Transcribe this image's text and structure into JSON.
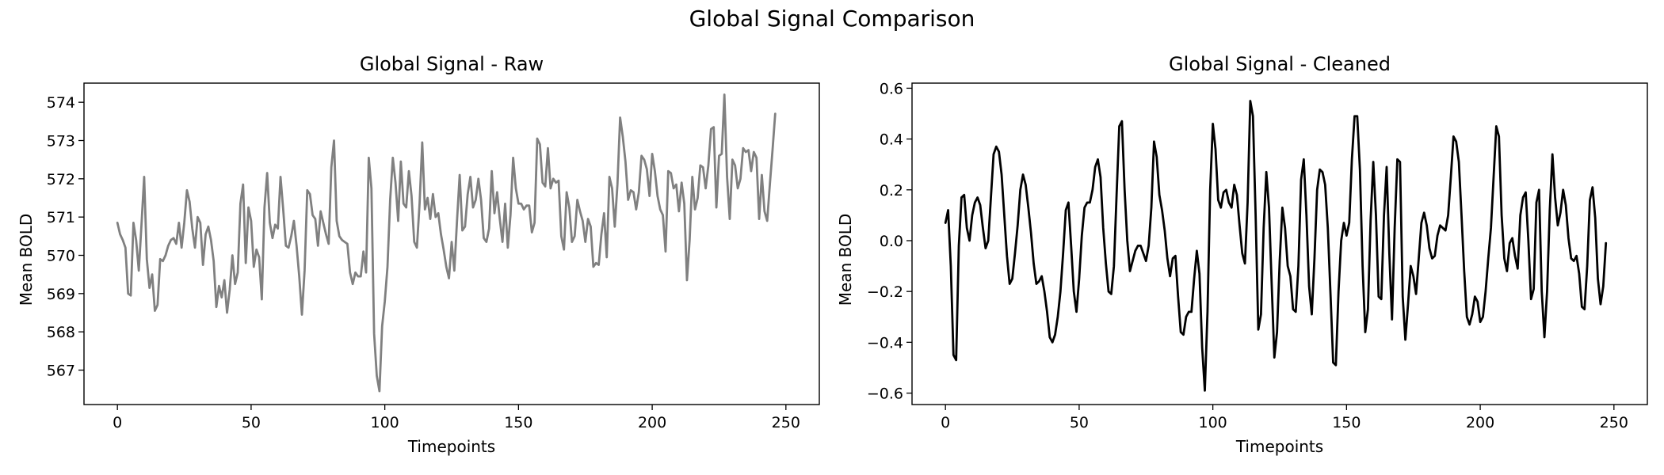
{
  "figure": {
    "suptitle": "Global Signal Comparison"
  },
  "chart_data": [
    {
      "type": "line",
      "title": "Global Signal - Raw",
      "xlabel": "Timepoints",
      "ylabel": "Mean BOLD",
      "xlim": [
        -12.5,
        262.5
      ],
      "ylim": [
        566.1,
        574.5
      ],
      "xticks": [
        0,
        50,
        100,
        150,
        200,
        250
      ],
      "yticks": [
        567,
        568,
        569,
        570,
        571,
        572,
        573,
        574
      ],
      "ytick_labels": [
        "567",
        "568",
        "569",
        "570",
        "571",
        "572",
        "573",
        "574"
      ],
      "grid": false,
      "series": [
        {
          "color": "#808080",
          "x_start": 0,
          "values": [
            570.85,
            570.55,
            570.4,
            570.2,
            569.0,
            568.95,
            570.85,
            570.4,
            569.6,
            570.8,
            572.05,
            569.9,
            569.15,
            569.5,
            568.55,
            568.7,
            569.9,
            569.85,
            570.0,
            570.25,
            570.4,
            570.45,
            570.3,
            570.85,
            570.2,
            570.85,
            571.7,
            571.4,
            570.7,
            570.2,
            571.0,
            570.85,
            569.75,
            570.55,
            570.75,
            570.4,
            569.85,
            568.65,
            569.2,
            568.9,
            569.35,
            568.5,
            569.1,
            570.0,
            569.25,
            569.55,
            571.35,
            571.85,
            569.8,
            571.25,
            570.9,
            569.7,
            570.15,
            569.95,
            568.85,
            571.25,
            572.15,
            570.85,
            570.45,
            570.8,
            570.7,
            572.05,
            571.2,
            570.25,
            570.2,
            570.5,
            570.9,
            570.25,
            569.45,
            568.45,
            569.6,
            571.7,
            571.6,
            571.05,
            570.95,
            570.25,
            571.15,
            570.85,
            570.55,
            570.3,
            572.3,
            573.0,
            570.9,
            570.5,
            570.4,
            570.35,
            570.3,
            569.55,
            569.25,
            569.55,
            569.45,
            569.45,
            570.1,
            569.55,
            572.55,
            571.75,
            567.95,
            566.85,
            566.45,
            568.15,
            568.8,
            569.7,
            571.45,
            572.55,
            571.9,
            570.9,
            572.45,
            571.35,
            571.25,
            572.2,
            571.55,
            570.35,
            570.2,
            571.35,
            572.95,
            571.2,
            571.5,
            570.95,
            571.6,
            571.0,
            571.1,
            570.55,
            570.15,
            569.7,
            569.4,
            570.35,
            569.6,
            570.9,
            572.1,
            570.65,
            570.75,
            571.6,
            572.05,
            571.25,
            571.45,
            572.0,
            571.45,
            570.45,
            570.35,
            570.7,
            572.2,
            571.1,
            571.65,
            570.95,
            570.35,
            571.35,
            570.2,
            571.05,
            572.55,
            571.75,
            571.35,
            571.35,
            571.2,
            571.3,
            571.3,
            570.6,
            570.85,
            573.05,
            572.9,
            571.9,
            571.8,
            572.8,
            571.75,
            572.0,
            571.9,
            571.95,
            570.5,
            570.15,
            571.65,
            571.25,
            570.35,
            570.5,
            571.45,
            571.15,
            570.9,
            570.35,
            570.95,
            570.75,
            569.7,
            569.8,
            569.75,
            570.55,
            571.1,
            569.95,
            572.05,
            571.75,
            570.75,
            571.85,
            573.6,
            573.1,
            572.45,
            571.45,
            571.7,
            571.65,
            571.2,
            571.65,
            572.6,
            572.5,
            572.25,
            571.55,
            572.65,
            572.2,
            571.55,
            571.2,
            571.05,
            570.1,
            572.2,
            572.15,
            571.75,
            571.85,
            571.15,
            571.9,
            571.35,
            569.35,
            570.4,
            572.05,
            571.2,
            571.5,
            572.35,
            572.3,
            571.75,
            572.35,
            573.3,
            573.35,
            571.25,
            572.6,
            572.65,
            574.2,
            572.05,
            570.95,
            572.5,
            572.35,
            571.75,
            572.0,
            572.8,
            572.7,
            572.75,
            572.2,
            572.7,
            572.55,
            570.95,
            572.1,
            571.15,
            570.9,
            571.85,
            572.75,
            573.7
          ]
        }
      ]
    },
    {
      "type": "line",
      "title": "Global Signal - Cleaned",
      "xlabel": "Timepoints",
      "ylabel": "Mean BOLD",
      "xlim": [
        -12.5,
        262.5
      ],
      "ylim": [
        -0.645,
        0.62
      ],
      "xticks": [
        0,
        50,
        100,
        150,
        200,
        250
      ],
      "yticks": [
        -0.6,
        -0.4,
        -0.2,
        0.0,
        0.2,
        0.4,
        0.6
      ],
      "ytick_labels": [
        "−0.6",
        "−0.4",
        "−0.2",
        "0.0",
        "0.2",
        "0.4",
        "0.6"
      ],
      "grid": false,
      "series": [
        {
          "color": "#000000",
          "x_start": 0,
          "values": [
            0.07,
            0.12,
            -0.1,
            -0.45,
            -0.47,
            -0.02,
            0.17,
            0.18,
            0.05,
            0.0,
            0.1,
            0.15,
            0.17,
            0.14,
            0.05,
            -0.03,
            0.0,
            0.17,
            0.34,
            0.37,
            0.35,
            0.26,
            0.1,
            -0.06,
            -0.17,
            -0.15,
            -0.05,
            0.06,
            0.2,
            0.26,
            0.22,
            0.13,
            0.03,
            -0.09,
            -0.17,
            -0.16,
            -0.14,
            -0.2,
            -0.28,
            -0.38,
            -0.4,
            -0.37,
            -0.3,
            -0.2,
            -0.05,
            0.12,
            0.15,
            -0.02,
            -0.2,
            -0.28,
            -0.15,
            0.02,
            0.13,
            0.15,
            0.15,
            0.2,
            0.29,
            0.32,
            0.25,
            0.05,
            -0.09,
            -0.2,
            -0.21,
            -0.1,
            0.18,
            0.45,
            0.47,
            0.2,
            0.0,
            -0.12,
            -0.08,
            -0.04,
            -0.02,
            -0.02,
            -0.05,
            -0.08,
            -0.02,
            0.13,
            0.39,
            0.33,
            0.18,
            0.12,
            0.04,
            -0.07,
            -0.14,
            -0.07,
            -0.06,
            -0.22,
            -0.36,
            -0.37,
            -0.3,
            -0.28,
            -0.28,
            -0.15,
            -0.04,
            -0.13,
            -0.42,
            -0.59,
            -0.28,
            0.2,
            0.46,
            0.36,
            0.16,
            0.13,
            0.19,
            0.2,
            0.15,
            0.13,
            0.22,
            0.18,
            0.06,
            -0.05,
            -0.09,
            0.15,
            0.55,
            0.49,
            0.1,
            -0.35,
            -0.29,
            0.05,
            0.27,
            0.13,
            -0.17,
            -0.46,
            -0.36,
            -0.08,
            0.13,
            0.05,
            -0.1,
            -0.14,
            -0.27,
            -0.28,
            -0.1,
            0.24,
            0.32,
            0.1,
            -0.18,
            -0.29,
            -0.07,
            0.2,
            0.28,
            0.27,
            0.22,
            0.05,
            -0.21,
            -0.48,
            -0.49,
            -0.2,
            0.0,
            0.07,
            0.02,
            0.07,
            0.32,
            0.49,
            0.49,
            0.28,
            -0.1,
            -0.36,
            -0.27,
            0.08,
            0.31,
            0.1,
            -0.22,
            -0.23,
            0.1,
            0.29,
            -0.05,
            -0.31,
            0.05,
            0.32,
            0.31,
            -0.22,
            -0.39,
            -0.25,
            -0.1,
            -0.14,
            -0.21,
            -0.07,
            0.07,
            0.11,
            0.06,
            -0.03,
            -0.07,
            -0.06,
            0.02,
            0.06,
            0.05,
            0.04,
            0.1,
            0.25,
            0.41,
            0.39,
            0.31,
            0.1,
            -0.12,
            -0.3,
            -0.33,
            -0.29,
            -0.22,
            -0.24,
            -0.32,
            -0.3,
            -0.2,
            -0.07,
            0.05,
            0.25,
            0.45,
            0.41,
            0.1,
            -0.07,
            -0.12,
            -0.01,
            0.01,
            -0.06,
            -0.11,
            0.1,
            0.17,
            0.19,
            0.0,
            -0.23,
            -0.19,
            0.15,
            0.2,
            -0.2,
            -0.38,
            -0.2,
            0.12,
            0.34,
            0.17,
            0.06,
            0.11,
            0.2,
            0.14,
            0.01,
            -0.07,
            -0.08,
            -0.06,
            -0.13,
            -0.26,
            -0.27,
            -0.1,
            0.16,
            0.21,
            0.09,
            -0.15,
            -0.25,
            -0.18,
            -0.01
          ]
        }
      ]
    }
  ]
}
